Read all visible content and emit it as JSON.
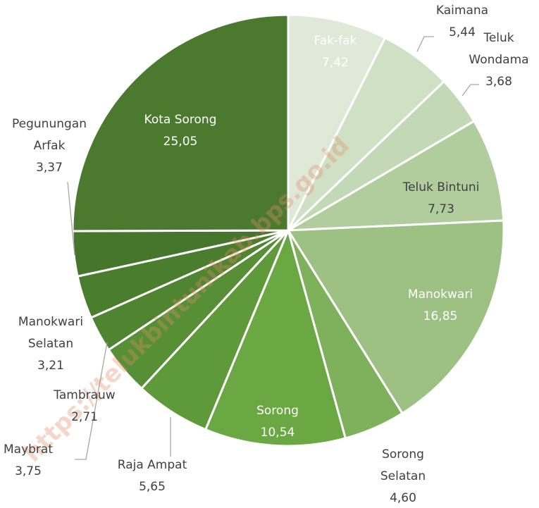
{
  "chart_data": {
    "type": "pie",
    "watermark": "https://telukbintunikab.bps.go.id",
    "categories": [
      "Fak-fak",
      "Kaimana",
      "Teluk Wondama",
      "Teluk Bintuni",
      "Manokwari",
      "Sorong Selatan",
      "Sorong",
      "Raja Ampat",
      "Maybrat",
      "Tambrauw",
      "Manokwari Selatan",
      "Pegunungan Arfak",
      "Kota Sorong"
    ],
    "values": [
      7.42,
      5.44,
      3.68,
      7.73,
      16.85,
      4.6,
      10.54,
      5.65,
      3.75,
      2.71,
      3.21,
      3.37,
      25.05
    ],
    "value_labels": [
      "7,42",
      "5,44",
      "3,68",
      "7,73",
      "16,85",
      "4,60",
      "10,54",
      "5,65",
      "3,75",
      "2,71",
      "3,21",
      "3,37",
      "25,05"
    ],
    "colors": [
      "#dfe9d8",
      "#cfe0c4",
      "#c3d8b5",
      "#b1cd9e",
      "#9cc183",
      "#7fb05c",
      "#6aa843",
      "#5e9a3a",
      "#568f35",
      "#4f8531",
      "#4a7d2e",
      "#46762c",
      "#4b7a2f"
    ]
  }
}
